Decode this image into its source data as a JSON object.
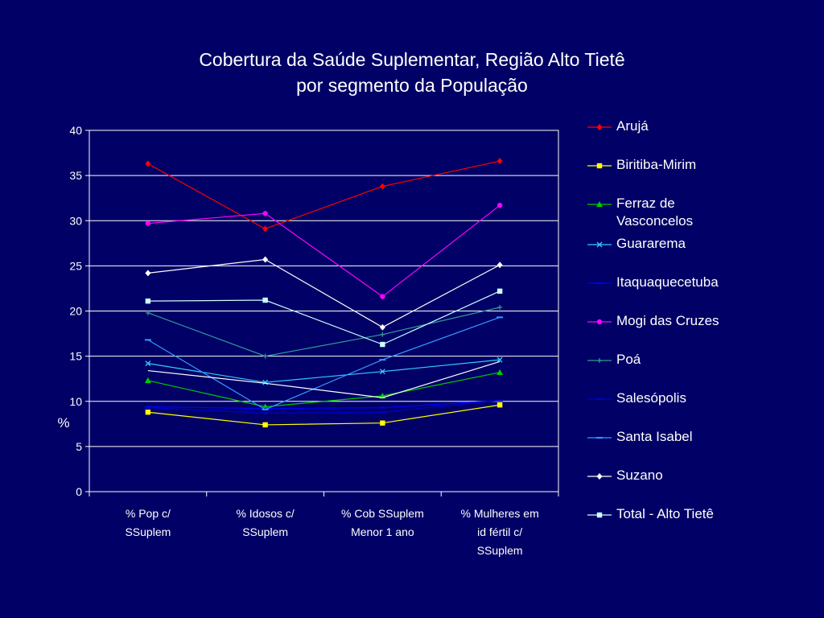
{
  "title": {
    "line1": "Cobertura da Saúde Suplementar, Região Alto Tietê",
    "line2": "por segmento da População"
  },
  "chart_data": {
    "type": "line",
    "categories": [
      [
        "% Pop c/",
        "SSuplem"
      ],
      [
        "% Idosos c/",
        "SSuplem"
      ],
      [
        "% Cob SSuplem",
        "Menor 1 ano"
      ],
      [
        "% Mulheres em",
        "id fértil c/",
        "SSuplem"
      ]
    ],
    "ylabel": "%",
    "ylim": [
      0,
      40
    ],
    "yticks": [
      0,
      5,
      10,
      15,
      20,
      25,
      30,
      35,
      40
    ],
    "grid": true,
    "legend_position": "right",
    "series": [
      {
        "name": "Arujá",
        "values": [
          36.3,
          29.1,
          33.8,
          36.6
        ],
        "color": "#ff0000",
        "marker": "diamond"
      },
      {
        "name": "Biritiba-Mirim",
        "values": [
          8.8,
          7.4,
          7.6,
          9.6
        ],
        "color": "#ffff00",
        "marker": "square"
      },
      {
        "name": "Ferraz de Vasconcelos",
        "values": [
          12.3,
          9.4,
          10.6,
          13.2
        ],
        "color": "#00cc00",
        "marker": "triangle"
      },
      {
        "name": "Guararema",
        "values": [
          14.2,
          12.1,
          13.3,
          14.6
        ],
        "color": "#33ccff",
        "marker": "x"
      },
      {
        "name": "Itaquaquecetuba",
        "values": [
          9.4,
          9.2,
          9.3,
          10.1
        ],
        "color": "#0000ff",
        "marker": "dash"
      },
      {
        "name": "Mogi das Cruzes",
        "values": [
          29.7,
          30.8,
          21.6,
          31.7
        ],
        "color": "#ff00ff",
        "marker": "circle"
      },
      {
        "name": "Poá",
        "values": [
          19.8,
          15.0,
          17.4,
          20.4
        ],
        "color": "#339999",
        "marker": "plus"
      },
      {
        "name": "Salesópolis",
        "values": [
          9.3,
          8.7,
          8.8,
          10.1
        ],
        "color": "#0000cc",
        "marker": "dash"
      },
      {
        "name": "Santa Isabel",
        "values": [
          16.8,
          9.1,
          14.6,
          19.3
        ],
        "color": "#3399ff",
        "marker": "dash"
      },
      {
        "name": "Suzano",
        "values": [
          24.2,
          25.7,
          18.2,
          25.1
        ],
        "color": "#ffffff",
        "marker": "diamond"
      },
      {
        "name": "Total - Alto Tietê",
        "values": [
          21.1,
          21.2,
          16.3,
          22.2
        ],
        "color": "#ccffff",
        "marker": "square"
      },
      {
        "name": "",
        "values": [
          13.4,
          12.0,
          10.4,
          14.4
        ],
        "color": "#ffffff",
        "marker": "none"
      }
    ]
  }
}
